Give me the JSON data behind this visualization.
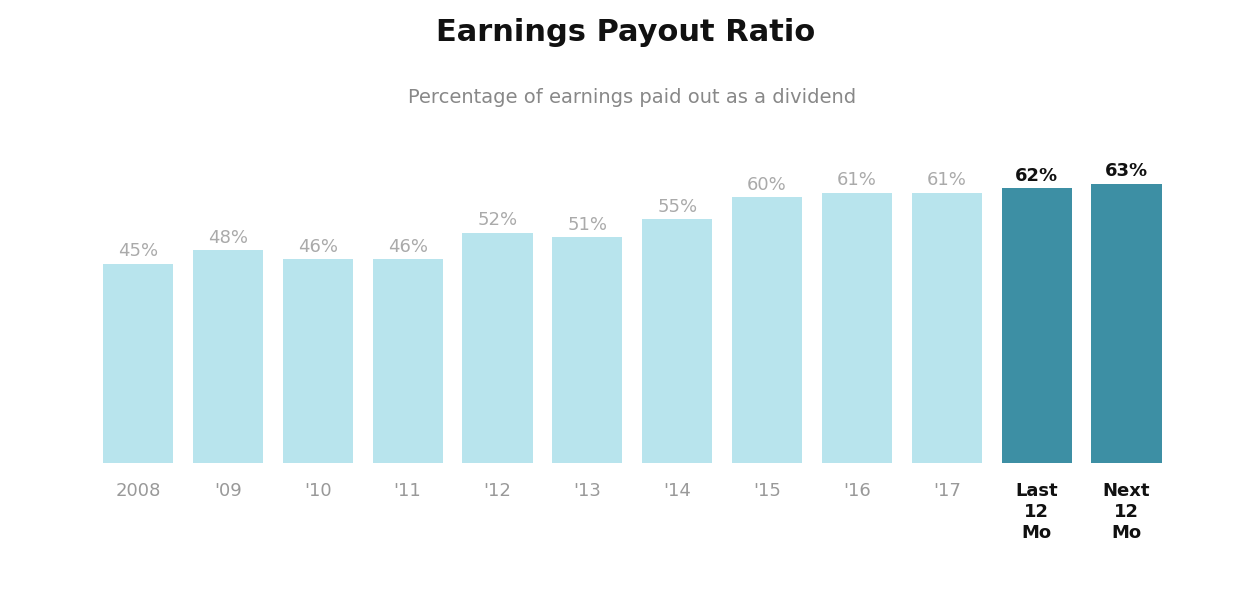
{
  "categories": [
    "2008",
    "'09",
    "'10",
    "'11",
    "'12",
    "'13",
    "'14",
    "'15",
    "'16",
    "'17",
    "Last\n12\nMo",
    "Next\n12\nMo"
  ],
  "values": [
    45,
    48,
    46,
    46,
    52,
    51,
    55,
    60,
    61,
    61,
    62,
    63
  ],
  "labels": [
    "45%",
    "48%",
    "46%",
    "46%",
    "52%",
    "51%",
    "55%",
    "60%",
    "61%",
    "61%",
    "62%",
    "63%"
  ],
  "bar_colors": [
    "#b8e4ed",
    "#b8e4ed",
    "#b8e4ed",
    "#b8e4ed",
    "#b8e4ed",
    "#b8e4ed",
    "#b8e4ed",
    "#b8e4ed",
    "#b8e4ed",
    "#b8e4ed",
    "#3d8fa4",
    "#3d8fa4"
  ],
  "label_colors": [
    "#aaaaaa",
    "#aaaaaa",
    "#aaaaaa",
    "#aaaaaa",
    "#aaaaaa",
    "#aaaaaa",
    "#aaaaaa",
    "#aaaaaa",
    "#aaaaaa",
    "#aaaaaa",
    "#111111",
    "#111111"
  ],
  "title": "Earnings Payout Ratio",
  "subtitle": "Percentage of earnings paid out as a dividend",
  "title_fontsize": 22,
  "subtitle_fontsize": 14,
  "label_fontsize": 13,
  "tick_fontsize": 13,
  "ylim": [
    0,
    75
  ],
  "background_color": "#ffffff"
}
